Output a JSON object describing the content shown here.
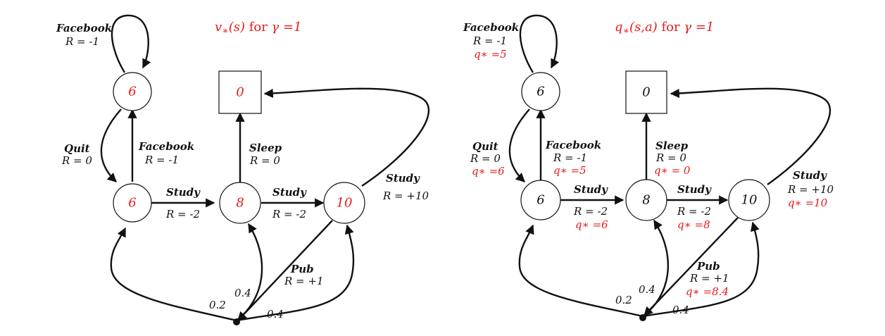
{
  "diagrams": [
    {
      "title": {
        "sym": "v",
        "star": "∗",
        "args": "(s)",
        "mid": " for ",
        "gamma": "γ =1"
      },
      "node_values": {
        "fb": "6",
        "c1": "6",
        "c2": "8",
        "c3": "10",
        "sleep": "0"
      },
      "node_color": "#e8191c",
      "labels": {
        "facebook_loop": {
          "action": "Facebook",
          "reward": "R = -1",
          "q": ""
        },
        "quit": {
          "action": "Quit",
          "reward": "R = 0",
          "q": ""
        },
        "facebook": {
          "action": "Facebook",
          "reward": "R = -1",
          "q": ""
        },
        "sleep": {
          "action": "Sleep",
          "reward": "R = 0",
          "q": ""
        },
        "study1": {
          "action": "Study",
          "reward": "R = -2",
          "q": ""
        },
        "study2": {
          "action": "Study",
          "reward": "R = -2",
          "q": ""
        },
        "study3": {
          "action": "Study",
          "reward": "R = +10",
          "q": ""
        },
        "pub": {
          "action": "Pub",
          "reward": "R = +1",
          "q": ""
        }
      },
      "probs": {
        "p1": "0.2",
        "p2": "0.4",
        "p3": "0.4"
      }
    },
    {
      "title": {
        "sym": "q",
        "star": "∗",
        "args": "(s,a)",
        "mid": " for ",
        "gamma": "γ =1"
      },
      "node_values": {
        "fb": "6",
        "c1": "6",
        "c2": "8",
        "c3": "10",
        "sleep": "0"
      },
      "node_color": "#111111",
      "labels": {
        "facebook_loop": {
          "action": "Facebook",
          "reward": "R = -1",
          "q": "q∗ =5"
        },
        "quit": {
          "action": "Quit",
          "reward": "R = 0",
          "q": "q∗ =6"
        },
        "facebook": {
          "action": "Facebook",
          "reward": "R = -1",
          "q": "q∗ =5"
        },
        "sleep": {
          "action": "Sleep",
          "reward": "R = 0",
          "q": "q∗ = 0"
        },
        "study1": {
          "action": "Study",
          "reward": "R = -2",
          "q": "q∗ =6"
        },
        "study2": {
          "action": "Study",
          "reward": "R = -2",
          "q": "q∗ =8"
        },
        "study3": {
          "action": "Study",
          "reward": "R = +10",
          "q": "q∗ =10"
        },
        "pub": {
          "action": "Pub",
          "reward": "R = +1",
          "q": "q∗ =8.4"
        }
      },
      "probs": {
        "p1": "0.2",
        "p2": "0.4",
        "p3": "0.4"
      }
    }
  ]
}
